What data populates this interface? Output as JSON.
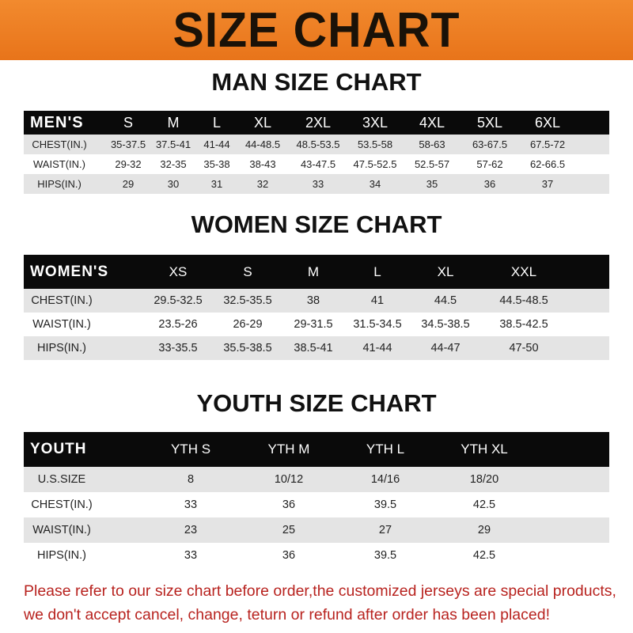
{
  "title": "SIZE CHART",
  "colors": {
    "banner": "#e8741a",
    "header": "#0a0a0a",
    "stripe": "#e4e4e4",
    "note": "#b8231f"
  },
  "tables": [
    {
      "title": "MAN SIZE CHART",
      "columns": [
        "MEN'S",
        "S",
        "M",
        "L",
        "XL",
        "2XL",
        "3XL",
        "4XL",
        "5XL",
        "6XL"
      ],
      "rows": [
        [
          "CHEST(IN.)",
          "35-37.5",
          "37.5-41",
          "41-44",
          "44-48.5",
          "48.5-53.5",
          "53.5-58",
          "58-63",
          "63-67.5",
          "67.5-72"
        ],
        [
          "WAIST(IN.)",
          "29-32",
          "32-35",
          "35-38",
          "38-43",
          "43-47.5",
          "47.5-52.5",
          "52.5-57",
          "57-62",
          "62-66.5"
        ],
        [
          "HIPS(IN.)",
          "29",
          "30",
          "31",
          "32",
          "33",
          "34",
          "35",
          "36",
          "37"
        ]
      ]
    },
    {
      "title": "WOMEN SIZE CHART",
      "columns": [
        "WOMEN'S",
        "XS",
        "S",
        "M",
        "L",
        "XL",
        "XXL"
      ],
      "rows": [
        [
          "CHEST(IN.)",
          "29.5-32.5",
          "32.5-35.5",
          "38",
          "41",
          "44.5",
          "44.5-48.5"
        ],
        [
          "WAIST(IN.)",
          "23.5-26",
          "26-29",
          "29-31.5",
          "31.5-34.5",
          "34.5-38.5",
          "38.5-42.5"
        ],
        [
          "HIPS(IN.)",
          "33-35.5",
          "35.5-38.5",
          "38.5-41",
          "41-44",
          "44-47",
          "47-50"
        ]
      ]
    },
    {
      "title": "YOUTH SIZE CHART",
      "columns": [
        "YOUTH",
        "YTH S",
        "YTH M",
        "YTH L",
        "YTH XL"
      ],
      "rows": [
        [
          "U.S.SIZE",
          "8",
          "10/12",
          "14/16",
          "18/20"
        ],
        [
          "CHEST(IN.)",
          "33",
          "36",
          "39.5",
          "42.5"
        ],
        [
          "WAIST(IN.)",
          "23",
          "25",
          "27",
          "29"
        ],
        [
          "HIPS(IN.)",
          "33",
          "36",
          "39.5",
          "42.5"
        ]
      ]
    }
  ],
  "note": {
    "line1": "Please refer to our size chart before order,the customized jerseys are special products,",
    "line2": "we don't accept cancel, change, teturn or refund after order has been placed!"
  }
}
